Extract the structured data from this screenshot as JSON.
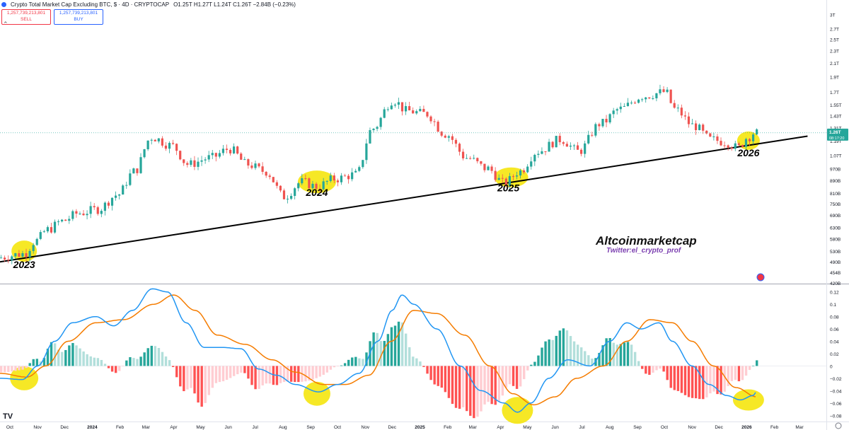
{
  "header": {
    "symbol_title": "Crypto Total Market Cap Excluding BTC, $ · 4D · CRYPTOCAP",
    "ohlc": "O1.25T H1.27T L1.24T C1.26T −2.84B (−0.23%)",
    "sell_value": "1,257,739,213,801",
    "sell_label": "SELL",
    "buy_value": "1,257,739,213,801",
    "buy_label": "BUY",
    "collapse_icon": "chevron-up-icon"
  },
  "colors": {
    "up": "#26a69a",
    "down": "#ef5350",
    "macd_line": "#2196f3",
    "signal_line": "#f57c00",
    "hist_up_strong": "#26a69a",
    "hist_up_weak": "#b2dfdb",
    "hist_down_strong": "#ff5252",
    "hist_down_weak": "#ffcdd2",
    "highlight": "#f5e400",
    "trendline": "#000000",
    "price_tag": "#26a69a"
  },
  "chart_data": [
    {
      "type": "line",
      "name": "price-chart",
      "series_type": "candlestick",
      "y_scale": "log",
      "ylim": [
        420000000000,
        3100000000000
      ],
      "y_tick_labels": [
        "3T",
        "2.7T",
        "2.5T",
        "2.3T",
        "2.1T",
        "1.9T",
        "1.7T",
        "1.55T",
        "1.43T",
        "1.31T",
        "1.19T",
        "1.07T",
        "970B",
        "890B",
        "810B",
        "750B",
        "690B",
        "630B",
        "580B",
        "530B",
        "490B",
        "454B",
        "420B"
      ],
      "y_tick_values": [
        3000,
        2700,
        2500,
        2300,
        2100,
        1900,
        1700,
        1550,
        1430,
        1310,
        1190,
        1070,
        970,
        890,
        810,
        750,
        690,
        630,
        580,
        530,
        490,
        454,
        420
      ],
      "y_unit": "billion USD",
      "x_tick_labels": [
        "Oct",
        "Nov",
        "Dec",
        "2024",
        "Feb",
        "Mar",
        "Apr",
        "May",
        "Jun",
        "Jul",
        "Aug",
        "Sep",
        "Oct",
        "Nov",
        "Dec",
        "2025",
        "Feb",
        "Mar",
        "Apr",
        "May",
        "Jun",
        "Jul",
        "Aug",
        "Sep",
        "Oct",
        "Nov",
        "Dec",
        "2026",
        "Feb",
        "Mar"
      ],
      "x_start": "2023-09-20",
      "x_end": "2026-03-31",
      "candle_interval_days": 4,
      "current_price_label": "1.26T",
      "current_countdown": "08:17:20",
      "price_anchors": [
        [
          "2023-09-20",
          505
        ],
        [
          "2023-10-20",
          520
        ],
        [
          "2023-11-01",
          570
        ],
        [
          "2023-11-15",
          620
        ],
        [
          "2023-12-01",
          660
        ],
        [
          "2023-12-20",
          700
        ],
        [
          "2024-01-10",
          720
        ],
        [
          "2024-02-01",
          800
        ],
        [
          "2024-02-20",
          950
        ],
        [
          "2024-03-10",
          1220
        ],
        [
          "2024-04-01",
          1150
        ],
        [
          "2024-04-20",
          1000
        ],
        [
          "2024-05-15",
          1050
        ],
        [
          "2024-06-05",
          1120
        ],
        [
          "2024-06-25",
          1000
        ],
        [
          "2024-07-15",
          950
        ],
        [
          "2024-08-05",
          790
        ],
        [
          "2024-08-25",
          880
        ],
        [
          "2024-09-10",
          850
        ],
        [
          "2024-10-01",
          900
        ],
        [
          "2024-10-25",
          930
        ],
        [
          "2024-11-12",
          1300
        ],
        [
          "2024-12-05",
          1600
        ],
        [
          "2024-12-20",
          1480
        ],
        [
          "2025-01-10",
          1450
        ],
        [
          "2025-02-01",
          1250
        ],
        [
          "2025-02-25",
          1050
        ],
        [
          "2025-03-20",
          970
        ],
        [
          "2025-04-08",
          870
        ],
        [
          "2025-04-25",
          950
        ],
        [
          "2025-05-15",
          1100
        ],
        [
          "2025-06-10",
          1200
        ],
        [
          "2025-06-30",
          1100
        ],
        [
          "2025-07-25",
          1350
        ],
        [
          "2025-08-15",
          1500
        ],
        [
          "2025-09-10",
          1650
        ],
        [
          "2025-10-05",
          1700
        ],
        [
          "2025-10-15",
          1500
        ],
        [
          "2025-11-05",
          1330
        ],
        [
          "2025-11-25",
          1200
        ],
        [
          "2025-12-10",
          1180
        ],
        [
          "2025-12-25",
          1130
        ],
        [
          "2026-01-05",
          1220
        ],
        [
          "2026-01-12",
          1260
        ]
      ],
      "trendline": {
        "from": [
          "2023-09-20",
          490
        ],
        "to": [
          "2026-03-10",
          1230
        ]
      },
      "highlights": [
        {
          "date": "2023-10-17",
          "value": 530,
          "label": "2023"
        },
        {
          "date": "2024-09-08",
          "value": 880,
          "label": "2024"
        },
        {
          "date": "2025-04-13",
          "value": 910,
          "label": "2025"
        },
        {
          "date": "2026-01-03",
          "value": 1190,
          "label": "2026"
        }
      ],
      "watermark": {
        "title": "Altcoinmarketcap",
        "subtitle": "Twitter:el_crypto_prof"
      }
    },
    {
      "type": "line",
      "name": "macd-chart",
      "ylim": [
        -0.09,
        0.13
      ],
      "y_tick_labels": [
        "0.12",
        "0.1",
        "0.08",
        "0.06",
        "0.04",
        "0.02",
        "0",
        "−0.02",
        "−0.04",
        "−0.06",
        "−0.08"
      ],
      "y_tick_values": [
        0.12,
        0.1,
        0.08,
        0.06,
        0.04,
        0.02,
        0,
        -0.02,
        -0.04,
        -0.06,
        -0.08
      ],
      "macd_anchors": [
        [
          "2023-09-20",
          -0.02
        ],
        [
          "2023-10-15",
          -0.022
        ],
        [
          "2023-11-01",
          0.0
        ],
        [
          "2023-11-20",
          0.04
        ],
        [
          "2023-12-10",
          0.07
        ],
        [
          "2024-01-05",
          0.08
        ],
        [
          "2024-01-25",
          0.065
        ],
        [
          "2024-02-15",
          0.09
        ],
        [
          "2024-03-08",
          0.125
        ],
        [
          "2024-03-25",
          0.12
        ],
        [
          "2024-04-15",
          0.07
        ],
        [
          "2024-05-05",
          0.03
        ],
        [
          "2024-05-25",
          0.03
        ],
        [
          "2024-06-15",
          0.028
        ],
        [
          "2024-07-05",
          -0.005
        ],
        [
          "2024-07-25",
          -0.015
        ],
        [
          "2024-08-15",
          -0.03
        ],
        [
          "2024-09-10",
          -0.042
        ],
        [
          "2024-10-01",
          -0.03
        ],
        [
          "2024-10-25",
          -0.012
        ],
        [
          "2024-11-15",
          0.04
        ],
        [
          "2024-12-01",
          0.09
        ],
        [
          "2024-12-12",
          0.115
        ],
        [
          "2024-12-25",
          0.1
        ],
        [
          "2025-01-20",
          0.06
        ],
        [
          "2025-02-15",
          0.0
        ],
        [
          "2025-03-10",
          -0.04
        ],
        [
          "2025-04-05",
          -0.06
        ],
        [
          "2025-04-20",
          -0.075
        ],
        [
          "2025-05-05",
          -0.06
        ],
        [
          "2025-05-25",
          -0.02
        ],
        [
          "2025-06-15",
          0.01
        ],
        [
          "2025-07-10",
          0.0
        ],
        [
          "2025-08-01",
          0.04
        ],
        [
          "2025-08-20",
          0.07
        ],
        [
          "2025-09-05",
          0.06
        ],
        [
          "2025-09-25",
          0.07
        ],
        [
          "2025-10-10",
          0.04
        ],
        [
          "2025-11-01",
          0.0
        ],
        [
          "2025-11-20",
          -0.03
        ],
        [
          "2025-12-10",
          -0.048
        ],
        [
          "2025-12-25",
          -0.055
        ],
        [
          "2026-01-08",
          -0.048
        ],
        [
          "2026-01-12",
          -0.042
        ]
      ],
      "signal_anchors": [
        [
          "2023-09-20",
          -0.012
        ],
        [
          "2023-10-20",
          -0.018
        ],
        [
          "2023-11-10",
          0.0
        ],
        [
          "2023-12-05",
          0.04
        ],
        [
          "2024-01-05",
          0.07
        ],
        [
          "2024-02-05",
          0.075
        ],
        [
          "2024-03-10",
          0.1
        ],
        [
          "2024-04-01",
          0.115
        ],
        [
          "2024-04-25",
          0.09
        ],
        [
          "2024-05-20",
          0.05
        ],
        [
          "2024-06-20",
          0.035
        ],
        [
          "2024-07-20",
          0.01
        ],
        [
          "2024-08-15",
          -0.01
        ],
        [
          "2024-09-15",
          -0.03
        ],
        [
          "2024-10-10",
          -0.03
        ],
        [
          "2024-11-05",
          -0.015
        ],
        [
          "2024-11-30",
          0.04
        ],
        [
          "2024-12-25",
          0.09
        ],
        [
          "2025-01-20",
          0.085
        ],
        [
          "2025-02-20",
          0.05
        ],
        [
          "2025-03-20",
          0.0
        ],
        [
          "2025-04-15",
          -0.045
        ],
        [
          "2025-05-08",
          -0.063
        ],
        [
          "2025-06-01",
          -0.05
        ],
        [
          "2025-06-25",
          -0.02
        ],
        [
          "2025-07-25",
          0.0
        ],
        [
          "2025-08-20",
          0.04
        ],
        [
          "2025-09-15",
          0.075
        ],
        [
          "2025-10-10",
          0.07
        ],
        [
          "2025-11-01",
          0.04
        ],
        [
          "2025-11-25",
          0.0
        ],
        [
          "2025-12-20",
          -0.035
        ],
        [
          "2026-01-12",
          -0.05
        ]
      ],
      "highlights": [
        {
          "date": "2023-10-17",
          "value": -0.02
        },
        {
          "date": "2024-09-08",
          "value": -0.045
        },
        {
          "date": "2025-04-20",
          "value": -0.072
        },
        {
          "date": "2026-01-03",
          "value": -0.055
        }
      ]
    }
  ]
}
